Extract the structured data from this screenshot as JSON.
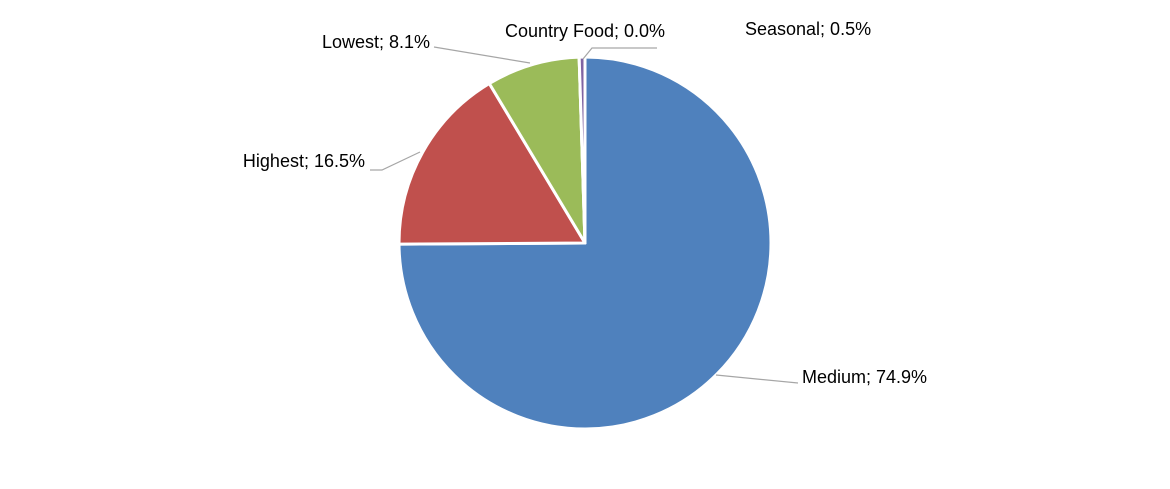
{
  "chart_data": {
    "type": "pie",
    "values": [
      74.9,
      16.5,
      8.1,
      0.0,
      0.5
    ],
    "value_labels": [
      "Medium; 74.9%",
      "Highest; 16.5%",
      "Lowest; 8.1%",
      "Country Food; 0.0%",
      "Seasonal; 0.5%"
    ],
    "colors": [
      "#4f81bd",
      "#c0504d",
      "#9bbb59",
      "#8064a2",
      "#8064a2"
    ]
  }
}
